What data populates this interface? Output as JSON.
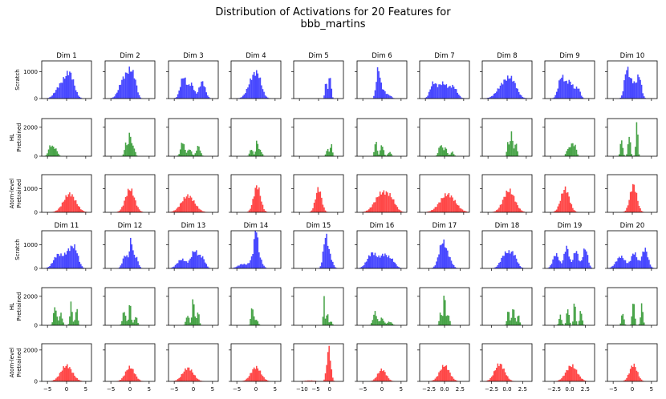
{
  "chart_data": {
    "type": "histogram-grid",
    "title": "Distribution of Activations for 20 Features for",
    "subtitle": "bbb_martins",
    "rows": [
      {
        "key": "scratch",
        "label_lines": [
          "Scratch"
        ],
        "color": "#0000ff",
        "ylim": [
          0,
          1400
        ],
        "yticks": [
          0,
          1000
        ],
        "ytick_labels": [
          "0",
          "1000"
        ]
      },
      {
        "key": "hl",
        "label_lines": [
          "HL",
          "Pretrained"
        ],
        "color": "#008000",
        "ylim": [
          0,
          2600
        ],
        "yticks": [
          0,
          2000
        ],
        "ytick_labels": [
          "0",
          "2000"
        ]
      },
      {
        "key": "atom",
        "label_lines": [
          "Atom-level",
          "Pretrained"
        ],
        "color": "#ff0000",
        "ylim": [
          0,
          1600
        ],
        "yticks": [
          0,
          1000
        ],
        "ytick_labels": [
          "0",
          "1000"
        ]
      }
    ],
    "row_ylim_block2": {
      "scratch": {
        "ylim": [
          0,
          1600
        ],
        "yticks": [
          0,
          1000
        ],
        "ytick_labels": [
          "0",
          "1000"
        ]
      },
      "hl": {
        "ylim": [
          0,
          2600
        ],
        "yticks": [
          0,
          2000
        ],
        "ytick_labels": [
          "0",
          "2000"
        ]
      },
      "atom": {
        "ylim": [
          0,
          2400
        ],
        "yticks": [
          0,
          2000
        ],
        "ytick_labels": [
          "0",
          "2000"
        ]
      }
    },
    "features": [
      {
        "name": "Dim 1",
        "xlim": [
          -6.5,
          6.5
        ],
        "xticks": [
          -5,
          0,
          5
        ],
        "xtick_labels": [
          "−5",
          "0",
          "5"
        ],
        "scratch": [
          [
            -2,
            1.2,
            330
          ],
          [
            0.2,
            1.3,
            620
          ],
          [
            1.2,
            1.0,
            420
          ]
        ],
        "hl": [
          [
            -4.3,
            0.5,
            650
          ],
          [
            -3.3,
            0.5,
            500
          ],
          [
            -2.5,
            0.4,
            250
          ]
        ],
        "atom": [
          [
            0.8,
            1.6,
            780
          ]
        ]
      },
      {
        "name": "Dim 2",
        "xlim": [
          -6.5,
          6.5
        ],
        "xticks": [
          -5,
          0,
          5
        ],
        "xtick_labels": [
          "−5",
          "0",
          "5"
        ],
        "scratch": [
          [
            -1.6,
            1.2,
            720
          ],
          [
            0.3,
            0.9,
            800
          ],
          [
            1.4,
            0.6,
            300
          ]
        ],
        "hl": [
          [
            -1.0,
            0.4,
            900
          ],
          [
            0.0,
            0.3,
            1600
          ],
          [
            0.9,
            0.4,
            700
          ]
        ],
        "atom": [
          [
            0.0,
            1.2,
            980
          ]
        ]
      },
      {
        "name": "Dim 3",
        "xlim": [
          -6.5,
          6.5
        ],
        "xticks": [
          -5,
          0,
          5
        ],
        "xtick_labels": [
          "−5",
          "0",
          "5"
        ],
        "scratch": [
          [
            -2.6,
            0.8,
            800
          ],
          [
            -0.5,
            0.7,
            520
          ],
          [
            2.3,
            0.8,
            620
          ]
        ],
        "hl": [
          [
            -2.8,
            0.5,
            1000
          ],
          [
            -1.0,
            0.5,
            500
          ],
          [
            1.3,
            0.5,
            700
          ]
        ],
        "atom": [
          [
            -1.4,
            1.7,
            700
          ]
        ]
      },
      {
        "name": "Dim 4",
        "xlim": [
          -6.5,
          6.5
        ],
        "xticks": [
          -5,
          0,
          5
        ],
        "xtick_labels": [
          "−5",
          "0",
          "5"
        ],
        "scratch": [
          [
            -0.5,
            1.4,
            840
          ],
          [
            0.8,
            0.8,
            300
          ]
        ],
        "hl": [
          [
            -1.2,
            0.4,
            500
          ],
          [
            0.3,
            0.3,
            1050
          ],
          [
            1.2,
            0.4,
            400
          ]
        ],
        "atom": [
          [
            0.3,
            0.9,
            1120
          ]
        ]
      },
      {
        "name": "Dim 5",
        "xlim": [
          -6.5,
          6.5
        ],
        "xticks": [
          -5,
          0,
          5
        ],
        "xtick_labels": [
          "−5",
          "0",
          "5"
        ],
        "scratch": [
          [
            2.0,
            0.3,
            620
          ],
          [
            3.0,
            0.3,
            900
          ]
        ],
        "hl": [
          [
            2.3,
            0.3,
            500
          ],
          [
            3.3,
            0.3,
            800
          ]
        ],
        "atom": [
          [
            0.0,
            0.8,
            1000
          ]
        ]
      },
      {
        "name": "Dim 6",
        "xlim": [
          -6.5,
          6.5
        ],
        "xticks": [
          -5,
          0,
          5
        ],
        "xtick_labels": [
          "−5",
          "0",
          "5"
        ],
        "scratch": [
          [
            -1.0,
            0.5,
            1000
          ],
          [
            0.2,
            0.8,
            320
          ],
          [
            2.0,
            0.6,
            100
          ]
        ],
        "hl": [
          [
            -1.6,
            0.3,
            1100
          ],
          [
            0.0,
            0.4,
            800
          ],
          [
            2.0,
            0.4,
            300
          ]
        ],
        "atom": [
          [
            0.0,
            1.8,
            800
          ],
          [
            2.5,
            1.2,
            350
          ]
        ]
      },
      {
        "name": "Dim 7",
        "xlim": [
          -6.5,
          6.5
        ],
        "xticks": [
          -5,
          0,
          5
        ],
        "xtick_labels": [
          "−5",
          "0",
          "5"
        ],
        "scratch": [
          [
            -3.0,
            0.8,
            520
          ],
          [
            -0.5,
            1.2,
            560
          ],
          [
            2.3,
            1.0,
            420
          ]
        ],
        "hl": [
          [
            -1.0,
            0.5,
            800
          ],
          [
            0.3,
            0.4,
            550
          ],
          [
            2.0,
            0.4,
            300
          ]
        ],
        "atom": [
          [
            0.8,
            2.0,
            760
          ]
        ]
      },
      {
        "name": "Dim 8",
        "xlim": [
          -6.5,
          6.5
        ],
        "xticks": [
          -5,
          0,
          5
        ],
        "xtick_labels": [
          "−5",
          "0",
          "5"
        ],
        "scratch": [
          [
            -0.5,
            1.8,
            600
          ],
          [
            1.5,
            1.2,
            380
          ]
        ],
        "hl": [
          [
            0.3,
            0.3,
            1000
          ],
          [
            1.2,
            0.3,
            1700
          ],
          [
            2.3,
            0.3,
            1000
          ]
        ],
        "atom": [
          [
            0.5,
            1.5,
            920
          ]
        ]
      },
      {
        "name": "Dim 9",
        "xlim": [
          -6.5,
          6.5
        ],
        "xticks": [
          -5,
          0,
          5
        ],
        "xtick_labels": [
          "−5",
          "0",
          "5"
        ],
        "scratch": [
          [
            -2.2,
            0.8,
            760
          ],
          [
            0.0,
            1.0,
            620
          ],
          [
            2.2,
            0.6,
            350
          ]
        ],
        "hl": [
          [
            -0.5,
            0.4,
            500
          ],
          [
            0.5,
            0.4,
            800
          ],
          [
            1.4,
            0.4,
            700
          ]
        ],
        "atom": [
          [
            -1.2,
            1.1,
            1000
          ]
        ]
      },
      {
        "name": "Dim 10",
        "xlim": [
          -6.5,
          6.5
        ],
        "xticks": [
          -5,
          0,
          5
        ],
        "xtick_labels": [
          "−5",
          "0",
          "5"
        ],
        "scratch": [
          [
            -1.5,
            0.6,
            1000
          ],
          [
            0.0,
            0.8,
            620
          ],
          [
            1.8,
            0.6,
            800
          ]
        ],
        "hl": [
          [
            -2.8,
            0.3,
            1200
          ],
          [
            -0.8,
            0.3,
            1500
          ],
          [
            1.2,
            0.25,
            2400
          ]
        ],
        "atom": [
          [
            0.3,
            0.9,
            1150
          ]
        ]
      },
      {
        "name": "Dim 11",
        "xlim": [
          -6.5,
          6.5
        ],
        "xticks": [
          -5,
          0,
          5
        ],
        "xtick_labels": [
          "−5",
          "0",
          "5"
        ],
        "scratch": [
          [
            -2.2,
            1.2,
            580
          ],
          [
            0.5,
            1.0,
            620
          ],
          [
            2.2,
            0.9,
            750
          ]
        ],
        "hl": [
          [
            -3.0,
            0.4,
            1300
          ],
          [
            -1.5,
            0.4,
            800
          ],
          [
            1.2,
            0.3,
            1500
          ],
          [
            2.6,
            0.3,
            1200
          ]
        ],
        "atom": [
          [
            0.0,
            1.5,
            1000
          ]
        ]
      },
      {
        "name": "Dim 12",
        "xlim": [
          -6.5,
          6.5
        ],
        "xticks": [
          -5,
          0,
          5
        ],
        "xtick_labels": [
          "−5",
          "0",
          "5"
        ],
        "scratch": [
          [
            -1.2,
            0.7,
            560
          ],
          [
            0.3,
            0.4,
            1100
          ],
          [
            1.5,
            0.6,
            500
          ]
        ],
        "hl": [
          [
            -1.5,
            0.4,
            1000
          ],
          [
            0.0,
            0.3,
            1500
          ],
          [
            1.5,
            0.4,
            600
          ]
        ],
        "atom": [
          [
            0.0,
            1.2,
            900
          ]
        ]
      },
      {
        "name": "Dim 13",
        "xlim": [
          -6.5,
          6.5
        ],
        "xticks": [
          -5,
          0,
          5
        ],
        "xtick_labels": [
          "−5",
          "0",
          "5"
        ],
        "scratch": [
          [
            -3.0,
            1.2,
            380
          ],
          [
            0.3,
            0.9,
            720
          ],
          [
            2.3,
            0.8,
            440
          ]
        ],
        "hl": [
          [
            -1.5,
            0.4,
            700
          ],
          [
            0.0,
            0.3,
            1900
          ],
          [
            1.2,
            0.3,
            1000
          ]
        ],
        "atom": [
          [
            -1.4,
            1.4,
            850
          ]
        ]
      },
      {
        "name": "Dim 14",
        "xlim": [
          -6.5,
          6.5
        ],
        "xticks": [
          -5,
          0,
          5
        ],
        "xtick_labels": [
          "−5",
          "0",
          "5"
        ],
        "scratch": [
          [
            -3.5,
            1.2,
            180
          ],
          [
            -0.5,
            0.9,
            520
          ],
          [
            0.0,
            0.4,
            1100
          ],
          [
            0.8,
            0.8,
            400
          ]
        ],
        "hl": [
          [
            -1.0,
            0.3,
            1300
          ],
          [
            0.0,
            0.5,
            400
          ]
        ],
        "atom": [
          [
            0.0,
            1.3,
            900
          ]
        ]
      },
      {
        "name": "Dim 15",
        "xlim": [
          -13,
          5
        ],
        "xticks": [
          -10,
          -5,
          0
        ],
        "xtick_labels": [
          "−10",
          "−5",
          "0"
        ],
        "scratch": [
          [
            -1.5,
            0.8,
            1200
          ],
          [
            0.0,
            1.0,
            500
          ]
        ],
        "hl": [
          [
            -2.0,
            0.25,
            2300
          ],
          [
            -0.8,
            0.3,
            1000
          ],
          [
            0.5,
            0.4,
            300
          ]
        ],
        "atom": [
          [
            -0.3,
            0.7,
            2100
          ],
          [
            -7.0,
            2.0,
            60
          ]
        ]
      },
      {
        "name": "Dim 16",
        "xlim": [
          -6.5,
          6.5
        ],
        "xticks": [
          -5,
          0,
          5
        ],
        "xtick_labels": [
          "−5",
          "0",
          "5"
        ],
        "scratch": [
          [
            -2.5,
            1.3,
            650
          ],
          [
            0.5,
            1.0,
            500
          ],
          [
            2.5,
            1.0,
            350
          ]
        ],
        "hl": [
          [
            -1.8,
            0.5,
            900
          ],
          [
            0.0,
            0.5,
            500
          ],
          [
            2.0,
            0.6,
            250
          ]
        ],
        "atom": [
          [
            0.0,
            1.1,
            750
          ]
        ]
      },
      {
        "name": "Dim 17",
        "xlim": [
          -4.0,
          4.0
        ],
        "xticks": [
          -2.5,
          0,
          2.5
        ],
        "xtick_labels": [
          "−2.5",
          "0.0",
          "2.5"
        ],
        "scratch": [
          [
            -0.3,
            0.6,
            1100
          ],
          [
            0.8,
            0.5,
            300
          ]
        ],
        "hl": [
          [
            -0.6,
            0.2,
            900
          ],
          [
            0.0,
            0.15,
            2400
          ],
          [
            0.6,
            0.2,
            800
          ]
        ],
        "atom": [
          [
            0.0,
            0.8,
            1000
          ]
        ]
      },
      {
        "name": "Dim 18",
        "xlim": [
          -4.0,
          4.0
        ],
        "xticks": [
          -2.5,
          0,
          2.5
        ],
        "xtick_labels": [
          "−2.5",
          "0.0",
          "2.5"
        ],
        "scratch": [
          [
            -0.3,
            0.7,
            600
          ],
          [
            1.0,
            0.6,
            550
          ]
        ],
        "hl": [
          [
            0.2,
            0.2,
            1000
          ],
          [
            1.0,
            0.2,
            1300
          ],
          [
            1.8,
            0.2,
            700
          ]
        ],
        "atom": [
          [
            -1.2,
            0.8,
            1100
          ]
        ]
      },
      {
        "name": "Dim 19",
        "xlim": [
          -4.0,
          4.0
        ],
        "xticks": [
          -2.5,
          0,
          2.5
        ],
        "xtick_labels": [
          "−2.5",
          "0.0",
          "2.5"
        ],
        "scratch": [
          [
            -2.2,
            0.5,
            600
          ],
          [
            -0.5,
            0.4,
            900
          ],
          [
            1.0,
            0.4,
            750
          ],
          [
            2.5,
            0.4,
            850
          ]
        ],
        "hl": [
          [
            -1.5,
            0.2,
            700
          ],
          [
            -0.3,
            0.2,
            1200
          ],
          [
            0.8,
            0.15,
            1800
          ],
          [
            1.8,
            0.2,
            1000
          ]
        ],
        "atom": [
          [
            0.3,
            0.9,
            1000
          ]
        ]
      },
      {
        "name": "Dim 20",
        "xlim": [
          -6.5,
          6.5
        ],
        "xticks": [
          -5,
          0,
          5
        ],
        "xtick_labels": [
          "−5",
          "0",
          "5"
        ],
        "scratch": [
          [
            -3.0,
            1.2,
            500
          ],
          [
            0.5,
            0.8,
            650
          ],
          [
            3.3,
            0.8,
            820
          ]
        ],
        "hl": [
          [
            -2.5,
            0.3,
            900
          ],
          [
            0.3,
            0.3,
            1800
          ],
          [
            2.5,
            0.3,
            1400
          ]
        ],
        "atom": [
          [
            0.3,
            1.0,
            1050
          ]
        ]
      }
    ]
  }
}
